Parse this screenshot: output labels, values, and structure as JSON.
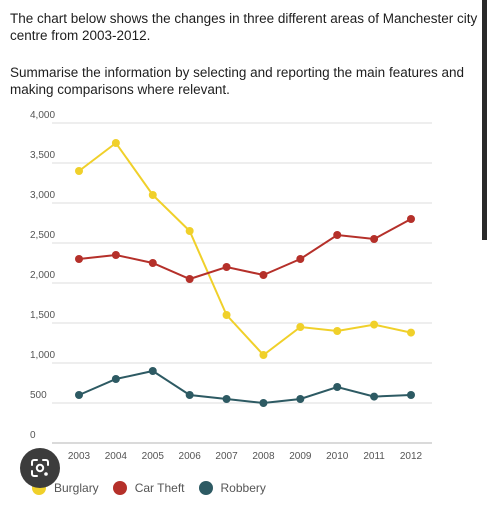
{
  "task": {
    "intro": "The chart below shows the changes in three different areas of Manchester city centre from 2003-2012.",
    "instruction": "Summarise the information by selecting and reporting the main features and making comparisons where relevant."
  },
  "chart_data": {
    "type": "line",
    "x": [
      "2003",
      "2004",
      "2005",
      "2006",
      "2007",
      "2008",
      "2009",
      "2010",
      "2011",
      "2012"
    ],
    "y_ticks": [
      "0",
      "500",
      "1,000",
      "1,500",
      "2,000",
      "2,500",
      "3,000",
      "3,500",
      "4,000"
    ],
    "ylim": [
      0,
      4000
    ],
    "grid": "horizontal",
    "legend_position": "bottom",
    "series": [
      {
        "name": "Burglary",
        "color": "#f0d02a",
        "values": [
          3400,
          3750,
          3100,
          2650,
          1600,
          1100,
          1450,
          1400,
          1480,
          1380
        ]
      },
      {
        "name": "Car Theft",
        "color": "#b5302a",
        "values": [
          2300,
          2350,
          2250,
          2050,
          2200,
          2100,
          2300,
          2600,
          2550,
          2800
        ]
      },
      {
        "name": "Robbery",
        "color": "#2d5a63",
        "values": [
          600,
          800,
          900,
          600,
          550,
          500,
          550,
          700,
          580,
          600
        ]
      }
    ]
  },
  "overlay": {
    "icon": "google-lens-icon"
  }
}
